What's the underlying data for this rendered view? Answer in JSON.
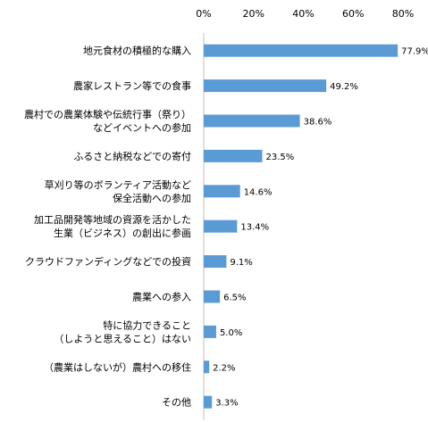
{
  "chart_data": {
    "type": "bar",
    "orientation": "horizontal",
    "title": "",
    "xlabel": "",
    "ylabel": "",
    "xlim": [
      0,
      80
    ],
    "ticks": [
      0,
      20,
      40,
      60,
      80
    ],
    "tick_labels": [
      "0%",
      "20%",
      "40%",
      "60%",
      "80%"
    ],
    "grid": false,
    "bar_color": "#5b9bd5",
    "categories": [
      [
        "地元食材の積極的な購入"
      ],
      [
        "農家レストラン等での食事"
      ],
      [
        "農村での農業体験や伝統行事（祭り）",
        "などイベントへの参加"
      ],
      [
        "ふるさと納税などでの寄付"
      ],
      [
        "草刈り等のボランティア活動など",
        "保全活動への参加"
      ],
      [
        "加工品開発等地域の資源を活かした",
        "生業（ビジネス）の創出に参画"
      ],
      [
        "クラウドファンディングなどでの投資"
      ],
      [
        "農業への参入"
      ],
      [
        "特に協力できること",
        "（しようと思えること）はない"
      ],
      [
        "（農業はしないが）農村への移住"
      ],
      [
        "その他"
      ]
    ],
    "values": [
      77.9,
      49.2,
      38.6,
      23.5,
      14.6,
      13.4,
      9.1,
      6.5,
      5.0,
      2.2,
      3.3
    ],
    "value_labels": [
      "77.9%",
      "49.2%",
      "38.6%",
      "23.5%",
      "14.6%",
      "13.4%",
      "9.1%",
      "6.5%",
      "5.0%",
      "2.2%",
      "3.3%"
    ]
  }
}
